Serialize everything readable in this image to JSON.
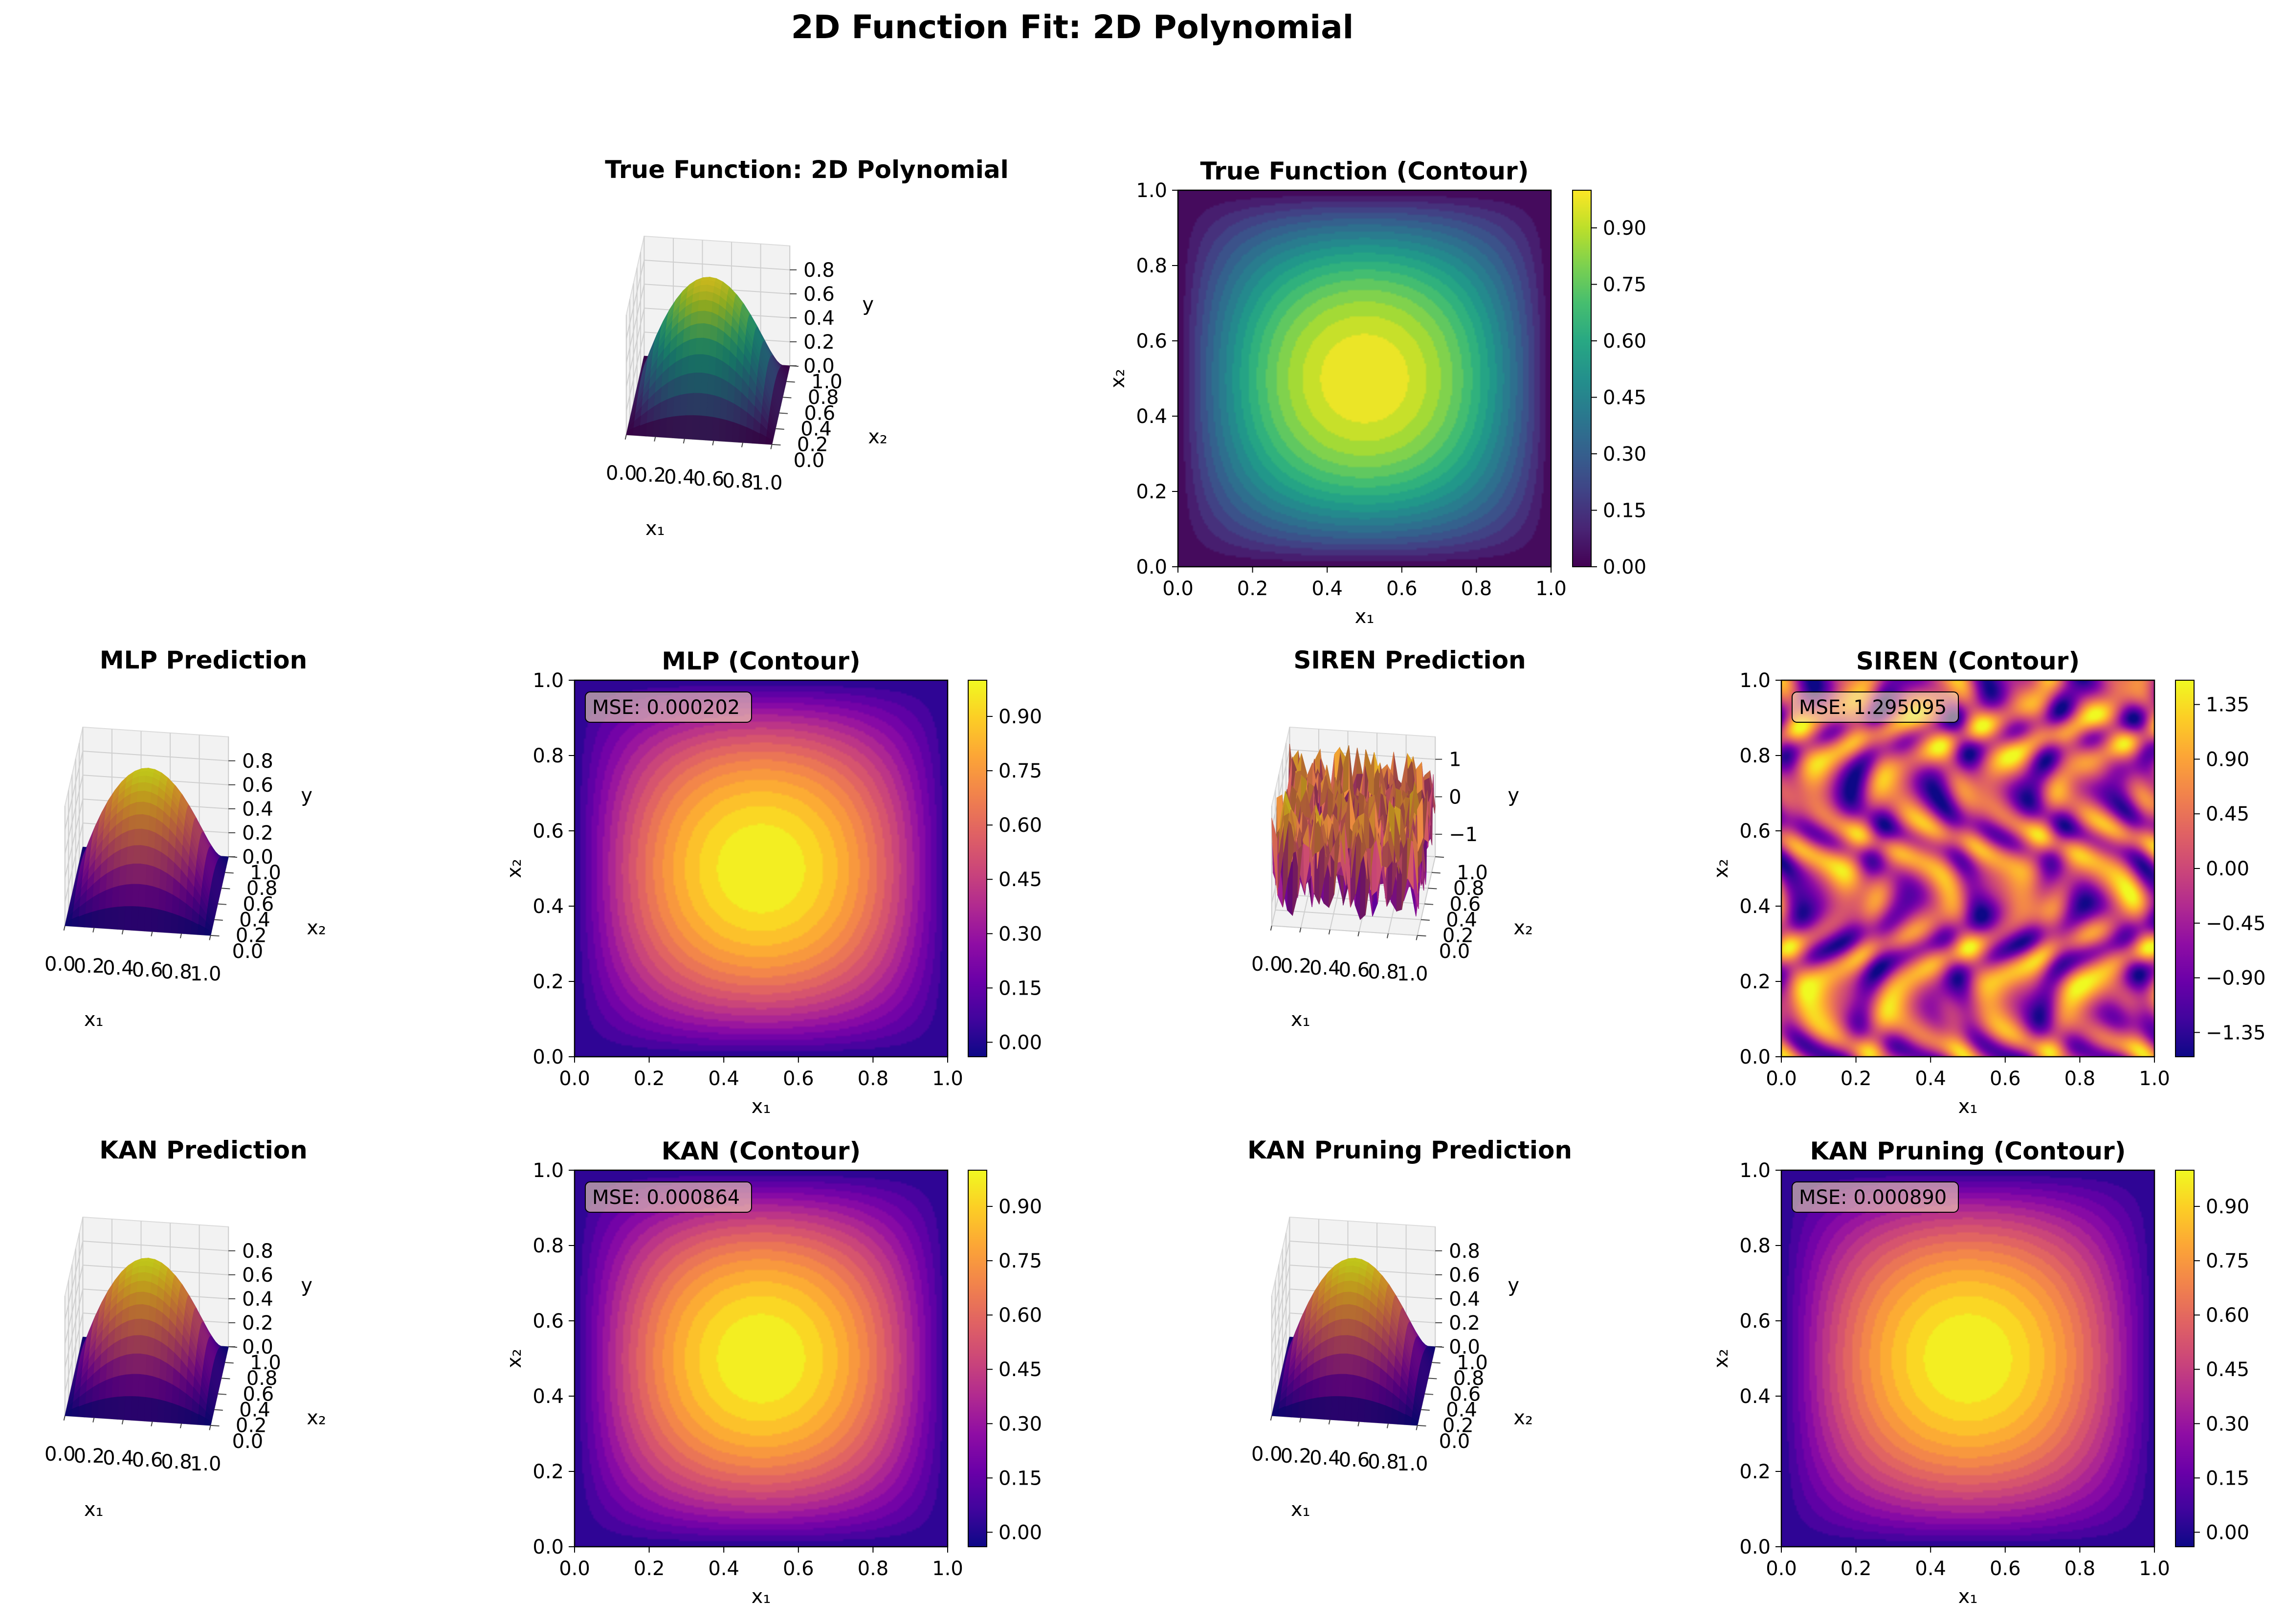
{
  "figure": {
    "suptitle": "2D Function Fit: 2D Polynomial"
  },
  "chart_data": [
    {
      "id": "true-3d",
      "type": "surface3d",
      "title": "True Function: 2D Polynomial",
      "xlabel": "x₁",
      "ylabel": "x₂",
      "zlabel": "y",
      "xticks": [
        "0.0",
        "0.2",
        "0.4",
        "0.6",
        "0.8",
        "1.0"
      ],
      "yticks": [
        "0.0",
        "0.2",
        "0.4",
        "0.6",
        "0.8",
        "1.0"
      ],
      "zticks": [
        "0.0",
        "0.2",
        "0.4",
        "0.6",
        "0.8"
      ],
      "zlim": [
        0,
        1
      ],
      "colormap": "viridis",
      "function": "polynomial",
      "grid": true
    },
    {
      "id": "true-contour",
      "type": "heatmap",
      "title": "True Function (Contour)",
      "xlabel": "x₁",
      "ylabel": "x₂",
      "xticks": [
        "0.0",
        "0.2",
        "0.4",
        "0.6",
        "0.8",
        "1.0"
      ],
      "yticks": [
        "0.0",
        "0.2",
        "0.4",
        "0.6",
        "0.8",
        "1.0"
      ],
      "colorbar_ticks": [
        "0.00",
        "0.15",
        "0.30",
        "0.45",
        "0.60",
        "0.75",
        "0.90"
      ],
      "colorbar_range": [
        0,
        1
      ],
      "colormap": "viridis",
      "function": "polynomial",
      "mse": ""
    },
    {
      "id": "mlp-3d",
      "type": "surface3d",
      "title": "MLP Prediction",
      "xlabel": "x₁",
      "ylabel": "x₂",
      "zlabel": "y",
      "xticks": [
        "0.0",
        "0.2",
        "0.4",
        "0.6",
        "0.8",
        "1.0"
      ],
      "yticks": [
        "0.0",
        "0.2",
        "0.4",
        "0.6",
        "0.8",
        "1.0"
      ],
      "zticks": [
        "0.0",
        "0.2",
        "0.4",
        "0.6",
        "0.8"
      ],
      "zlim": [
        0,
        1
      ],
      "colormap": "plasma",
      "function": "polynomial",
      "grid": true
    },
    {
      "id": "mlp-contour",
      "type": "heatmap",
      "title": "MLP (Contour)",
      "xlabel": "x₁",
      "ylabel": "x₂",
      "xticks": [
        "0.0",
        "0.2",
        "0.4",
        "0.6",
        "0.8",
        "1.0"
      ],
      "yticks": [
        "0.0",
        "0.2",
        "0.4",
        "0.6",
        "0.8",
        "1.0"
      ],
      "colorbar_ticks": [
        "0.00",
        "0.15",
        "0.30",
        "0.45",
        "0.60",
        "0.75",
        "0.90"
      ],
      "colorbar_range": [
        -0.04,
        1.0
      ],
      "colormap": "plasma",
      "function": "polynomial",
      "mse": "MSE: 0.000202"
    },
    {
      "id": "siren-3d",
      "type": "surface3d",
      "title": "SIREN Prediction",
      "xlabel": "x₁",
      "ylabel": "x₂",
      "zlabel": "y",
      "xticks": [
        "0.0",
        "0.2",
        "0.4",
        "0.6",
        "0.8",
        "1.0"
      ],
      "yticks": [
        "0.0",
        "0.2",
        "0.4",
        "0.6",
        "0.8",
        "1.0"
      ],
      "zticks": [
        "−1",
        "0",
        "1"
      ],
      "zlim": [
        -1.6,
        1.6
      ],
      "colormap": "plasma",
      "function": "noise",
      "grid": true
    },
    {
      "id": "siren-contour",
      "type": "heatmap",
      "title": "SIREN (Contour)",
      "xlabel": "x₁",
      "ylabel": "x₂",
      "xticks": [
        "0.0",
        "0.2",
        "0.4",
        "0.6",
        "0.8",
        "1.0"
      ],
      "yticks": [
        "0.0",
        "0.2",
        "0.4",
        "0.6",
        "0.8",
        "1.0"
      ],
      "colorbar_ticks": [
        "−1.35",
        "−0.90",
        "−0.45",
        "0.00",
        "0.45",
        "0.90",
        "1.35"
      ],
      "colorbar_range": [
        -1.55,
        1.55
      ],
      "colormap": "plasma",
      "function": "noise",
      "mse": "MSE: 1.295095"
    },
    {
      "id": "kan-3d",
      "type": "surface3d",
      "title": "KAN Prediction",
      "xlabel": "x₁",
      "ylabel": "x₂",
      "zlabel": "y",
      "xticks": [
        "0.0",
        "0.2",
        "0.4",
        "0.6",
        "0.8",
        "1.0"
      ],
      "yticks": [
        "0.0",
        "0.2",
        "0.4",
        "0.6",
        "0.8",
        "1.0"
      ],
      "zticks": [
        "0.0",
        "0.2",
        "0.4",
        "0.6",
        "0.8"
      ],
      "zlim": [
        0,
        1
      ],
      "colormap": "plasma",
      "function": "polynomial",
      "grid": true
    },
    {
      "id": "kan-contour",
      "type": "heatmap",
      "title": "KAN (Contour)",
      "xlabel": "x₁",
      "ylabel": "x₂",
      "xticks": [
        "0.0",
        "0.2",
        "0.4",
        "0.6",
        "0.8",
        "1.0"
      ],
      "yticks": [
        "0.0",
        "0.2",
        "0.4",
        "0.6",
        "0.8",
        "1.0"
      ],
      "colorbar_ticks": [
        "0.00",
        "0.15",
        "0.30",
        "0.45",
        "0.60",
        "0.75",
        "0.90"
      ],
      "colorbar_range": [
        -0.04,
        1.0
      ],
      "colormap": "plasma",
      "function": "polynomial",
      "mse": "MSE: 0.000864"
    },
    {
      "id": "kanp-3d",
      "type": "surface3d",
      "title": "KAN Pruning Prediction",
      "xlabel": "x₁",
      "ylabel": "x₂",
      "zlabel": "y",
      "xticks": [
        "0.0",
        "0.2",
        "0.4",
        "0.6",
        "0.8",
        "1.0"
      ],
      "yticks": [
        "0.0",
        "0.2",
        "0.4",
        "0.6",
        "0.8",
        "1.0"
      ],
      "zticks": [
        "0.0",
        "0.2",
        "0.4",
        "0.6",
        "0.8"
      ],
      "zlim": [
        0,
        1
      ],
      "colormap": "plasma",
      "function": "polynomial",
      "grid": true
    },
    {
      "id": "kanp-contour",
      "type": "heatmap",
      "title": "KAN Pruning (Contour)",
      "xlabel": "x₁",
      "ylabel": "x₂",
      "xticks": [
        "0.0",
        "0.2",
        "0.4",
        "0.6",
        "0.8",
        "1.0"
      ],
      "yticks": [
        "0.0",
        "0.2",
        "0.4",
        "0.6",
        "0.8",
        "1.0"
      ],
      "colorbar_ticks": [
        "0.00",
        "0.15",
        "0.30",
        "0.45",
        "0.60",
        "0.75",
        "0.90"
      ],
      "colorbar_range": [
        -0.04,
        1.0
      ],
      "colormap": "plasma",
      "function": "polynomial",
      "mse": "MSE: 0.000890"
    }
  ]
}
